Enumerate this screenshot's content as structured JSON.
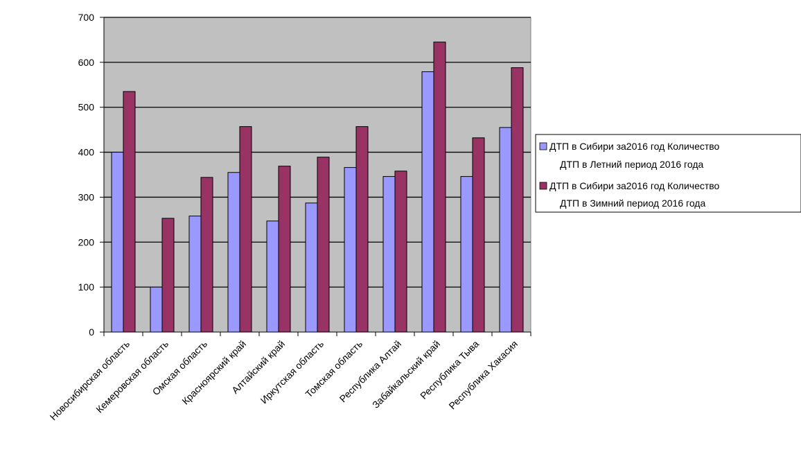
{
  "chart_data": {
    "type": "bar",
    "categories": [
      "Новосибирская область",
      "Кемеровская область",
      "Омская область",
      "Красноярский край",
      "Алтайский край",
      "Иркутская область",
      "Томская область",
      "Республика Алтай",
      "Забайкальский край",
      "Республика Тыва",
      "Республика Хакасия"
    ],
    "series": [
      {
        "name_lines": [
          "ДТП в Сибири за2016 год Количество",
          "ДТП в Летний период 2016 года"
        ],
        "color": "#9999ff",
        "values": [
          400,
          100,
          258,
          355,
          247,
          287,
          366,
          346,
          579,
          346,
          455
        ]
      },
      {
        "name_lines": [
          "ДТП в Сибири за2016 год Количество",
          "ДТП в Зимний период 2016 года"
        ],
        "color": "#993366",
        "values": [
          535,
          253,
          344,
          457,
          369,
          389,
          457,
          358,
          645,
          432,
          588
        ]
      }
    ],
    "ylim": [
      0,
      700
    ],
    "yticks": [
      0,
      100,
      200,
      300,
      400,
      500,
      600,
      700
    ],
    "grid": true,
    "plot_background": "#c0c0c0",
    "legend_position": "right"
  }
}
